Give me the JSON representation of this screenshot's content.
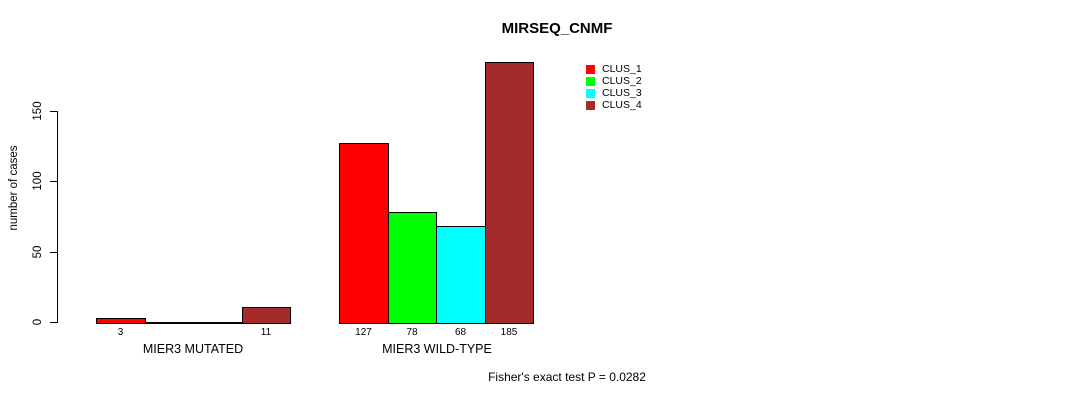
{
  "chart_data": {
    "type": "bar",
    "title": "MIRSEQ_CNMF",
    "ylabel": "number of cases",
    "xlabel": "",
    "ylim": [
      0,
      185
    ],
    "y_ticks": [
      0,
      50,
      100,
      150
    ],
    "grid": false,
    "legend_position": "top-right",
    "bar_border_color": "#000000",
    "categories": [
      "MIER3 MUTATED",
      "MIER3 WILD-TYPE"
    ],
    "series": [
      {
        "name": "CLUS_1",
        "color": "#ff0000",
        "values": [
          3,
          127
        ]
      },
      {
        "name": "CLUS_2",
        "color": "#00ff00",
        "values": [
          0,
          78
        ]
      },
      {
        "name": "CLUS_3",
        "color": "#00ffff",
        "values": [
          0,
          68
        ]
      },
      {
        "name": "CLUS_4",
        "color": "#a52a2a",
        "values": [
          11,
          185
        ]
      }
    ],
    "bar_value_labels": [
      [
        "3",
        "",
        "",
        "11"
      ],
      [
        "127",
        "78",
        "68",
        "185"
      ]
    ],
    "annotation": "Fisher's exact test P = 0.0282"
  }
}
